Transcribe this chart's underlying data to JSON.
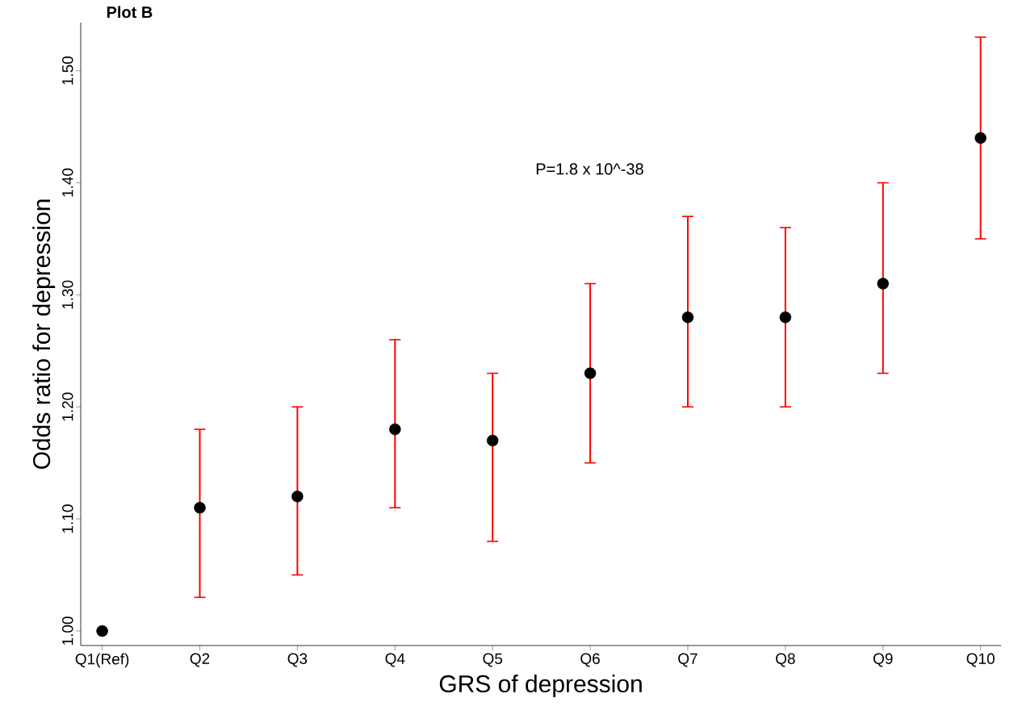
{
  "chart_data": {
    "type": "scatter",
    "title": "Plot B",
    "xlabel": "GRS of depression",
    "ylabel": "Odds ratio for depression",
    "categories": [
      "Q1(Ref)",
      "Q2",
      "Q3",
      "Q4",
      "Q5",
      "Q6",
      "Q7",
      "Q8",
      "Q9",
      "Q10"
    ],
    "series": [
      {
        "color": "#000000",
        "values": [
          1.0,
          1.11,
          1.12,
          1.18,
          1.17,
          1.23,
          1.28,
          1.28,
          1.31,
          1.44
        ],
        "errors": [
          [
            1.0,
            1.0
          ],
          [
            1.03,
            1.18
          ],
          [
            1.05,
            1.2
          ],
          [
            1.11,
            1.26
          ],
          [
            1.08,
            1.23
          ],
          [
            1.15,
            1.31
          ],
          [
            1.2,
            1.37
          ],
          [
            1.2,
            1.36
          ],
          [
            1.23,
            1.4
          ],
          [
            1.35,
            1.53
          ]
        ]
      }
    ],
    "ylim": [
      0.987,
      1.543
    ],
    "yticks": [
      {
        "value": 1.0,
        "label": "1.00"
      },
      {
        "value": 1.1,
        "label": "1.10"
      },
      {
        "value": 1.2,
        "label": "1.20"
      },
      {
        "value": 1.3,
        "label": "1.30"
      },
      {
        "value": 1.4,
        "label": "1.40"
      },
      {
        "value": 1.5,
        "label": "1.50"
      }
    ],
    "marker": "circle",
    "grid": false,
    "annotations": [
      "P=1.8 x 10^-38"
    ]
  }
}
